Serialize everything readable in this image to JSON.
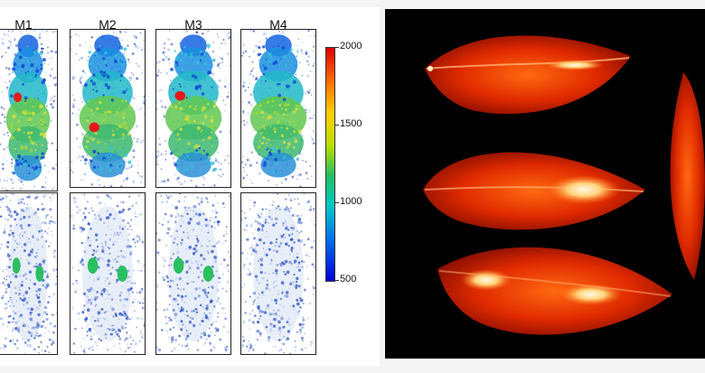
{
  "figure": {
    "mouse_labels": [
      "M1",
      "M2",
      "M3",
      "M4"
    ],
    "colorbar": {
      "ticks": [
        "2000",
        "1500",
        "1000",
        "500"
      ],
      "colors": [
        "#e00000",
        "#ff7000",
        "#ffd000",
        "#b8e000",
        "#20c060",
        "#00c8c8",
        "#0070f0",
        "#0000d8"
      ]
    },
    "panels": {
      "left": "fluorescence-imaging-mice-grid",
      "right": "thermal-imaging-leaves"
    }
  }
}
